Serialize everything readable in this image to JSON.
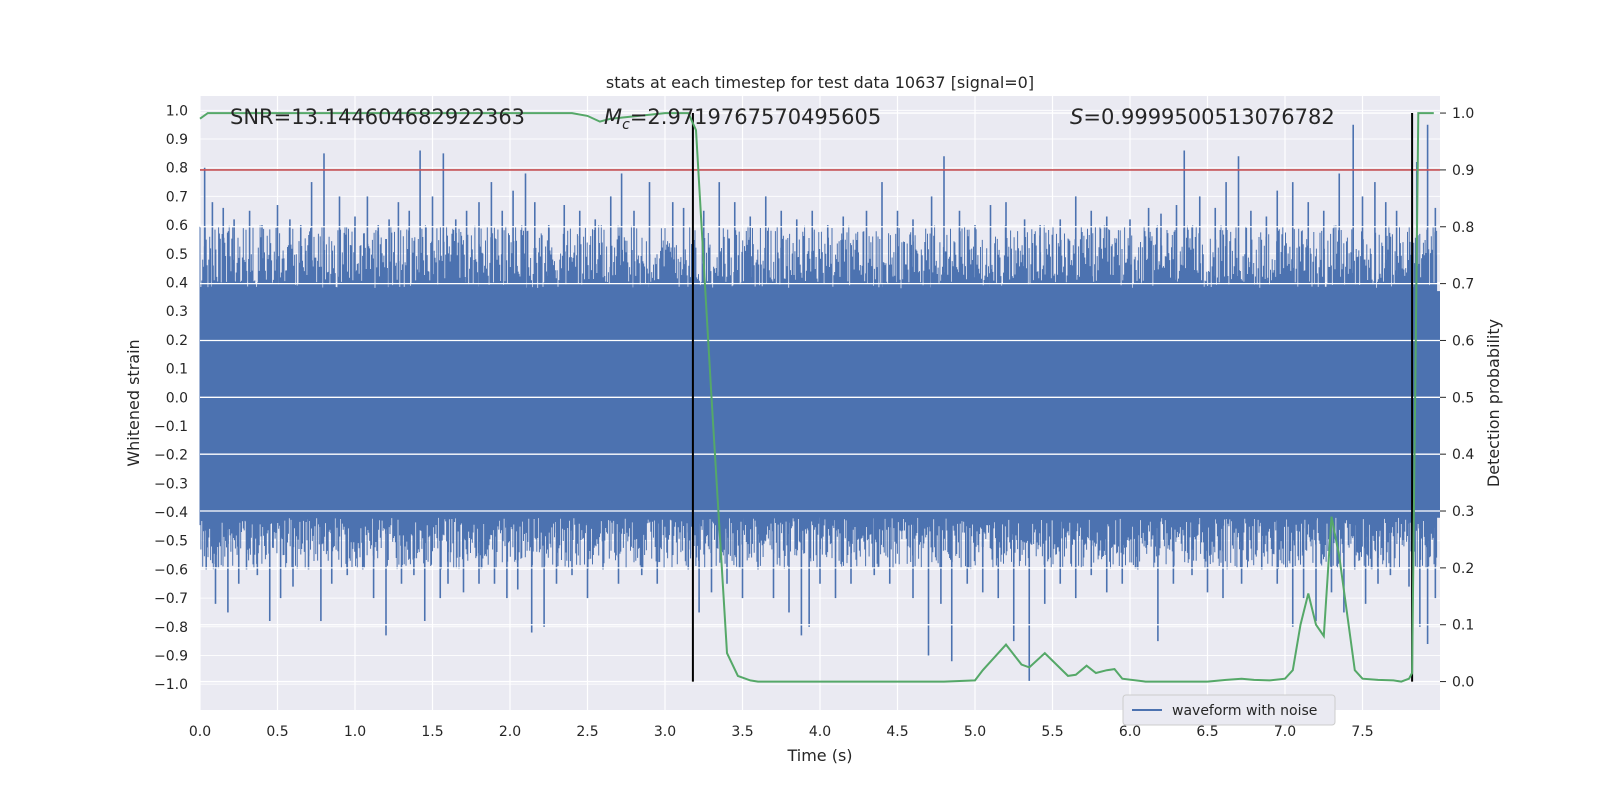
{
  "chart_data": {
    "type": "line",
    "title": "stats at each timestep for test data 10637 [signal=0]",
    "xlabel": "Time (s)",
    "ylabel_left": "Whitened strain",
    "ylabel_right": "Detection probability",
    "xlim": [
      0.0,
      8.0
    ],
    "ylim_left": [
      -1.09,
      1.05
    ],
    "ylim_right": [
      -0.05,
      1.03
    ],
    "x_ticks": [
      "0.0",
      "0.5",
      "1.0",
      "1.5",
      "2.0",
      "2.5",
      "3.0",
      "3.5",
      "4.0",
      "4.5",
      "5.0",
      "5.5",
      "6.0",
      "6.5",
      "7.0",
      "7.5"
    ],
    "y_ticks_left": [
      "1.0",
      "0.9",
      "0.8",
      "0.7",
      "0.6",
      "0.5",
      "0.4",
      "0.3",
      "0.2",
      "0.1",
      "0.0",
      "-0.1",
      "-0.2",
      "-0.3",
      "-0.4",
      "-0.5",
      "-0.6",
      "-0.7",
      "-0.8",
      "-0.9",
      "-1.0"
    ],
    "y_ticks_right": [
      "1.0",
      "0.9",
      "0.8",
      "0.7",
      "0.6",
      "0.5",
      "0.4",
      "0.3",
      "0.2",
      "0.1",
      "0.0"
    ],
    "grid": true,
    "legend": {
      "label": "waveform with noise",
      "location": "lower-right"
    },
    "annotations": {
      "snr": "SNR=13.144604682922363",
      "mc_symbol": "M",
      "mc_sub": "c",
      "mc_value": "=2.9719767570495605",
      "s_symbol": "S",
      "s_value": "=0.9999500513076782"
    },
    "threshold_line": {
      "axis": "right",
      "y": 0.9,
      "color": "#c44e52"
    },
    "vertical_lines": [
      3.18,
      7.82
    ],
    "waveform": {
      "name": "waveform with noise",
      "color": "#4c72b0",
      "dense_band": [
        -0.42,
        0.37
      ],
      "upper_spikes": [
        [
          0.03,
          0.8
        ],
        [
          0.08,
          0.68
        ],
        [
          0.15,
          0.66
        ],
        [
          0.22,
          0.62
        ],
        [
          0.32,
          0.65
        ],
        [
          0.4,
          0.6
        ],
        [
          0.5,
          0.67
        ],
        [
          0.58,
          0.62
        ],
        [
          0.65,
          0.6
        ],
        [
          0.72,
          0.75
        ],
        [
          0.8,
          0.85
        ],
        [
          0.9,
          0.7
        ],
        [
          1.0,
          0.63
        ],
        [
          1.08,
          0.7
        ],
        [
          1.15,
          0.6
        ],
        [
          1.22,
          0.62
        ],
        [
          1.28,
          0.68
        ],
        [
          1.35,
          0.65
        ],
        [
          1.42,
          0.86
        ],
        [
          1.5,
          0.7
        ],
        [
          1.57,
          0.85
        ],
        [
          1.65,
          0.62
        ],
        [
          1.72,
          0.65
        ],
        [
          1.8,
          0.68
        ],
        [
          1.88,
          0.75
        ],
        [
          1.95,
          0.65
        ],
        [
          2.02,
          0.72
        ],
        [
          2.1,
          0.78
        ],
        [
          2.16,
          0.68
        ],
        [
          2.25,
          0.6
        ],
        [
          2.35,
          0.67
        ],
        [
          2.45,
          0.65
        ],
        [
          2.55,
          0.62
        ],
        [
          2.65,
          0.7
        ],
        [
          2.72,
          0.78
        ],
        [
          2.8,
          0.65
        ],
        [
          2.9,
          0.75
        ],
        [
          3.05,
          0.68
        ],
        [
          3.12,
          0.66
        ],
        [
          3.25,
          0.65
        ],
        [
          3.35,
          0.75
        ],
        [
          3.45,
          0.68
        ],
        [
          3.55,
          0.63
        ],
        [
          3.65,
          0.7
        ],
        [
          3.75,
          0.65
        ],
        [
          3.85,
          0.62
        ],
        [
          3.95,
          0.65
        ],
        [
          4.05,
          0.6
        ],
        [
          4.15,
          0.63
        ],
        [
          4.3,
          0.65
        ],
        [
          4.4,
          0.75
        ],
        [
          4.5,
          0.65
        ],
        [
          4.6,
          0.62
        ],
        [
          4.72,
          0.7
        ],
        [
          4.8,
          0.84
        ],
        [
          4.9,
          0.65
        ],
        [
          5.0,
          0.6
        ],
        [
          5.1,
          0.67
        ],
        [
          5.2,
          0.68
        ],
        [
          5.32,
          0.62
        ],
        [
          5.42,
          0.6
        ],
        [
          5.55,
          0.62
        ],
        [
          5.65,
          0.7
        ],
        [
          5.75,
          0.65
        ],
        [
          5.85,
          0.63
        ],
        [
          6.0,
          0.62
        ],
        [
          6.12,
          0.66
        ],
        [
          6.2,
          0.64
        ],
        [
          6.3,
          0.67
        ],
        [
          6.35,
          0.86
        ],
        [
          6.45,
          0.7
        ],
        [
          6.55,
          0.66
        ],
        [
          6.62,
          0.75
        ],
        [
          6.7,
          0.84
        ],
        [
          6.78,
          0.65
        ],
        [
          6.88,
          0.63
        ],
        [
          6.95,
          0.72
        ],
        [
          7.05,
          0.75
        ],
        [
          7.15,
          0.68
        ],
        [
          7.25,
          0.65
        ],
        [
          7.35,
          0.78
        ],
        [
          7.44,
          0.95
        ],
        [
          7.5,
          0.7
        ],
        [
          7.58,
          0.75
        ],
        [
          7.65,
          0.68
        ],
        [
          7.72,
          0.65
        ],
        [
          7.85,
          0.82
        ],
        [
          7.92,
          0.95
        ],
        [
          7.97,
          0.66
        ]
      ],
      "lower_spikes": [
        [
          0.04,
          -0.6
        ],
        [
          0.1,
          -0.72
        ],
        [
          0.18,
          -0.75
        ],
        [
          0.25,
          -0.65
        ],
        [
          0.3,
          -0.6
        ],
        [
          0.37,
          -0.62
        ],
        [
          0.45,
          -0.78
        ],
        [
          0.52,
          -0.7
        ],
        [
          0.6,
          -0.66
        ],
        [
          0.7,
          -0.6
        ],
        [
          0.78,
          -0.78
        ],
        [
          0.85,
          -0.65
        ],
        [
          0.95,
          -0.62
        ],
        [
          1.05,
          -0.6
        ],
        [
          1.12,
          -0.7
        ],
        [
          1.2,
          -0.83
        ],
        [
          1.3,
          -0.65
        ],
        [
          1.38,
          -0.62
        ],
        [
          1.45,
          -0.78
        ],
        [
          1.55,
          -0.7
        ],
        [
          1.6,
          -0.65
        ],
        [
          1.7,
          -0.68
        ],
        [
          1.8,
          -0.65
        ],
        [
          1.9,
          -0.65
        ],
        [
          1.98,
          -0.7
        ],
        [
          2.05,
          -0.67
        ],
        [
          2.14,
          -0.82
        ],
        [
          2.22,
          -0.8
        ],
        [
          2.3,
          -0.65
        ],
        [
          2.4,
          -0.62
        ],
        [
          2.5,
          -0.7
        ],
        [
          2.6,
          -0.6
        ],
        [
          2.7,
          -0.65
        ],
        [
          2.85,
          -0.62
        ],
        [
          2.95,
          -0.65
        ],
        [
          3.05,
          -0.55
        ],
        [
          3.15,
          -0.6
        ],
        [
          3.22,
          -0.75
        ],
        [
          3.3,
          -0.68
        ],
        [
          3.4,
          -0.65
        ],
        [
          3.5,
          -0.7
        ],
        [
          3.6,
          -0.6
        ],
        [
          3.7,
          -0.7
        ],
        [
          3.8,
          -0.75
        ],
        [
          3.88,
          -0.83
        ],
        [
          3.93,
          -0.8
        ],
        [
          4.0,
          -0.65
        ],
        [
          4.1,
          -0.7
        ],
        [
          4.2,
          -0.65
        ],
        [
          4.35,
          -0.62
        ],
        [
          4.45,
          -0.65
        ],
        [
          4.6,
          -0.7
        ],
        [
          4.7,
          -0.9
        ],
        [
          4.78,
          -0.72
        ],
        [
          4.85,
          -0.92
        ],
        [
          4.95,
          -0.65
        ],
        [
          5.05,
          -0.68
        ],
        [
          5.15,
          -0.7
        ],
        [
          5.25,
          -0.85
        ],
        [
          5.35,
          -0.99
        ],
        [
          5.45,
          -0.72
        ],
        [
          5.55,
          -0.65
        ],
        [
          5.65,
          -0.7
        ],
        [
          5.75,
          -0.62
        ],
        [
          5.85,
          -0.68
        ],
        [
          5.95,
          -0.65
        ],
        [
          6.05,
          -0.6
        ],
        [
          6.18,
          -0.85
        ],
        [
          6.28,
          -0.65
        ],
        [
          6.4,
          -0.62
        ],
        [
          6.5,
          -0.68
        ],
        [
          6.6,
          -0.7
        ],
        [
          6.72,
          -0.65
        ],
        [
          6.85,
          -0.6
        ],
        [
          6.95,
          -0.65
        ],
        [
          7.05,
          -0.8
        ],
        [
          7.12,
          -0.7
        ],
        [
          7.2,
          -0.78
        ],
        [
          7.3,
          -0.68
        ],
        [
          7.38,
          -0.75
        ],
        [
          7.45,
          -0.6
        ],
        [
          7.52,
          -0.72
        ],
        [
          7.6,
          -0.65
        ],
        [
          7.68,
          -0.62
        ],
        [
          7.8,
          -0.66
        ],
        [
          7.87,
          -0.8
        ],
        [
          7.92,
          -0.86
        ],
        [
          7.97,
          -0.7
        ]
      ]
    },
    "detection_probability": {
      "name": "detection probability",
      "color": "#55a868",
      "x": [
        0.0,
        0.05,
        0.5,
        1.0,
        1.5,
        2.0,
        2.4,
        2.5,
        2.58,
        2.65,
        3.0,
        3.15,
        3.2,
        3.3,
        3.4,
        3.47,
        3.55,
        3.6,
        3.7,
        3.8,
        4.0,
        4.5,
        4.8,
        5.0,
        5.05,
        5.2,
        5.3,
        5.35,
        5.45,
        5.6,
        5.65,
        5.72,
        5.78,
        5.85,
        5.9,
        5.95,
        6.1,
        6.5,
        6.62,
        6.72,
        6.8,
        6.9,
        7.0,
        7.05,
        7.1,
        7.15,
        7.2,
        7.25,
        7.3,
        7.35,
        7.45,
        7.5,
        7.6,
        7.7,
        7.75,
        7.8,
        7.82,
        7.86,
        7.9,
        7.96
      ],
      "y": [
        0.99,
        1.0,
        1.0,
        1.0,
        1.0,
        1.0,
        1.0,
        0.995,
        0.985,
        0.99,
        1.0,
        1.0,
        0.97,
        0.5,
        0.05,
        0.01,
        0.002,
        0.0,
        0.0,
        0.0,
        0.0,
        0.0,
        0.0,
        0.002,
        0.02,
        0.065,
        0.03,
        0.025,
        0.05,
        0.01,
        0.012,
        0.028,
        0.015,
        0.02,
        0.022,
        0.005,
        0.0,
        0.0,
        0.003,
        0.005,
        0.003,
        0.002,
        0.005,
        0.02,
        0.1,
        0.155,
        0.1,
        0.08,
        0.29,
        0.22,
        0.02,
        0.005,
        0.003,
        0.002,
        0.0,
        0.005,
        0.015,
        1.0,
        1.0,
        1.0
      ]
    }
  }
}
